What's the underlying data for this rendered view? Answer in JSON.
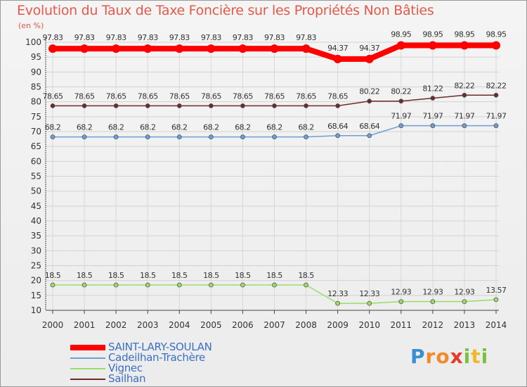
{
  "chart_data": {
    "type": "line",
    "title": "Evolution du Taux de Taxe Foncière sur les Propriétés Non Bâties",
    "ylabel": "(en %)",
    "xlabel": "",
    "ylim": [
      10,
      100
    ],
    "yticks": [
      10,
      15,
      20,
      25,
      30,
      35,
      40,
      45,
      50,
      55,
      60,
      65,
      70,
      75,
      80,
      85,
      90,
      95,
      100
    ],
    "categories": [
      "2000",
      "2001",
      "2002",
      "2003",
      "2004",
      "2005",
      "2006",
      "2007",
      "2008",
      "2009",
      "2010",
      "2011",
      "2012",
      "2013",
      "2014"
    ],
    "grid": true,
    "legend_position": "bottom-left",
    "series": [
      {
        "name": "SAINT-LARY-SOULAN",
        "color": "#ff0000",
        "values": [
          97.83,
          97.83,
          97.83,
          97.83,
          97.83,
          97.83,
          97.83,
          97.83,
          97.83,
          94.37,
          94.37,
          98.95,
          98.95,
          98.95,
          98.95
        ],
        "labels": [
          "97.83",
          "97.83",
          "97.83",
          "97.83",
          "97.83",
          "97.83",
          "97.83",
          "97.83",
          "97.83",
          "94.37",
          "94.37",
          "98.95",
          "98.95",
          "98.95",
          "98.95"
        ]
      },
      {
        "name": "Cadeilhan-Trachère",
        "color": "#6d9fd3",
        "values": [
          68.2,
          68.2,
          68.2,
          68.2,
          68.2,
          68.2,
          68.2,
          68.2,
          68.2,
          68.64,
          68.64,
          71.97,
          71.97,
          71.97,
          71.97
        ],
        "labels": [
          "68.2",
          "68.2",
          "68.2",
          "68.2",
          "68.2",
          "68.2",
          "68.2",
          "68.2",
          "68.2",
          "68.64",
          "68.64",
          "71.97",
          "71.97",
          "71.97",
          "71.97"
        ]
      },
      {
        "name": "Vignec",
        "color": "#99dd66",
        "values": [
          18.5,
          18.5,
          18.5,
          18.5,
          18.5,
          18.5,
          18.5,
          18.5,
          18.5,
          12.33,
          12.33,
          12.93,
          12.93,
          12.93,
          13.57
        ],
        "labels": [
          "18.5",
          "18.5",
          "18.5",
          "18.5",
          "18.5",
          "18.5",
          "18.5",
          "18.5",
          "18.5",
          "12.33",
          "12.33",
          "12.93",
          "12.93",
          "12.93",
          "13.57"
        ]
      },
      {
        "name": "Sailhan",
        "color": "#6b2b2b",
        "values": [
          78.65,
          78.65,
          78.65,
          78.65,
          78.65,
          78.65,
          78.65,
          78.65,
          78.65,
          78.65,
          80.22,
          80.22,
          81.22,
          82.22,
          82.22
        ],
        "labels": [
          "78.65",
          "78.65",
          "78.65",
          "78.65",
          "78.65",
          "78.65",
          "78.65",
          "78.65",
          "78.65",
          "78.65",
          "80.22",
          "80.22",
          "81.22",
          "82.22",
          "82.22"
        ]
      }
    ]
  },
  "legend": {
    "items": [
      {
        "label": "SAINT-LARY-SOULAN",
        "color": "#ff0000"
      },
      {
        "label": "Cadeilhan-Trachère",
        "color": "#6d9fd3"
      },
      {
        "label": "Vignec",
        "color": "#99dd66"
      },
      {
        "label": "Sailhan",
        "color": "#6b2b2b"
      }
    ]
  },
  "logo": {
    "letters": [
      "P",
      "r",
      "o",
      "x",
      "i",
      "t",
      "i"
    ],
    "colors": [
      "#3a8fd0",
      "#f08a2a",
      "#f08a2a",
      "#e63a2a",
      "#7ac143",
      "#f0b92a",
      "#7ac143"
    ]
  }
}
